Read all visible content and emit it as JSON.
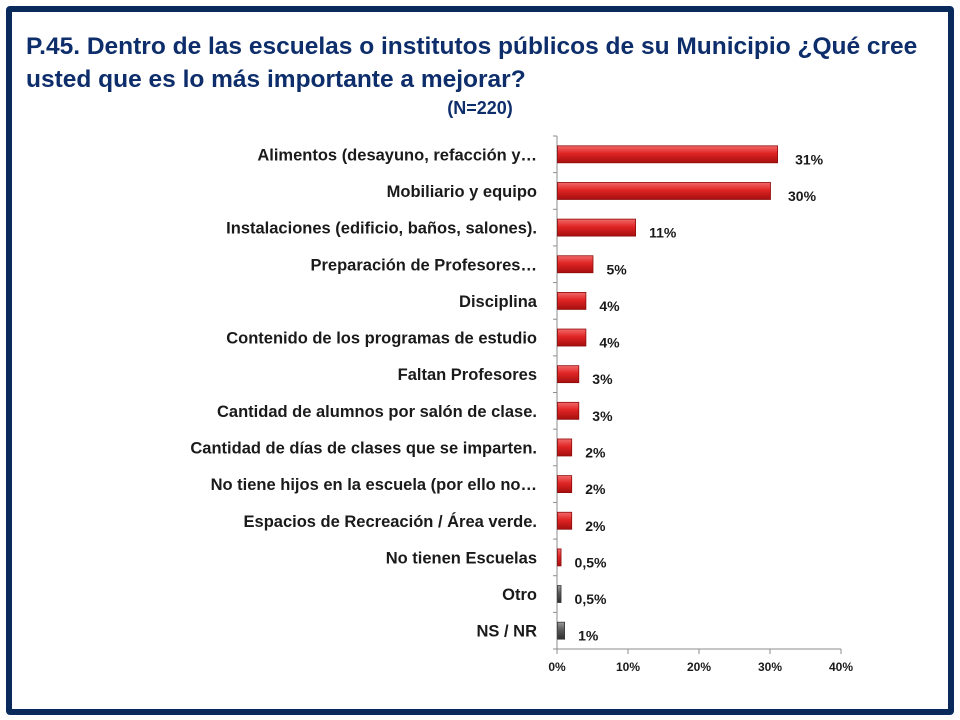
{
  "title": "P.45.  Dentro de las escuelas o institutos públicos de su Municipio ¿Qué cree usted que es lo más importante a mejorar?",
  "subtitle": "(N=220)",
  "colors": {
    "frame": "#0b2a5c",
    "title": "#0d2d6b",
    "bar_red": "#d61e1e",
    "bar_gray": "#555555"
  },
  "chart_data": {
    "type": "bar",
    "orientation": "horizontal",
    "title": "P.45.  Dentro de las escuelas o institutos públicos de su Municipio ¿Qué cree usted que es lo más importante a mejorar?",
    "subtitle": "(N=220)",
    "categories": [
      "Alimentos  (desayuno, refacción y…",
      "Mobiliario y equipo",
      "Instalaciones (edificio, baños, salones).",
      "Preparación de Profesores…",
      "Disciplina",
      "Contenido de los programas de estudio",
      "Faltan Profesores",
      "Cantidad de alumnos por salón de clase.",
      "Cantidad de días de clases que se imparten.",
      "No tiene hijos en la escuela (por ello no…",
      "Espacios de Recreación / Área verde.",
      "No tienen Escuelas",
      "Otro",
      "NS / NR"
    ],
    "values": [
      31,
      30,
      11,
      5,
      4,
      4,
      3,
      3,
      2,
      2,
      2,
      0.5,
      0.5,
      1
    ],
    "value_labels": [
      "31%",
      "30%",
      "11%",
      "5%",
      "4%",
      "4%",
      "3%",
      "3%",
      "2%",
      "2%",
      "2%",
      "0,5%",
      "0,5%",
      "1%"
    ],
    "bar_colors": [
      "red",
      "red",
      "red",
      "red",
      "red",
      "red",
      "red",
      "red",
      "red",
      "red",
      "red",
      "red",
      "gray",
      "gray"
    ],
    "xlim": [
      0,
      40
    ],
    "xticks": [
      0,
      10,
      20,
      30,
      40
    ],
    "xtick_labels": [
      "0%",
      "10%",
      "20%",
      "30%",
      "40%"
    ],
    "grid": false,
    "legend": "none"
  }
}
